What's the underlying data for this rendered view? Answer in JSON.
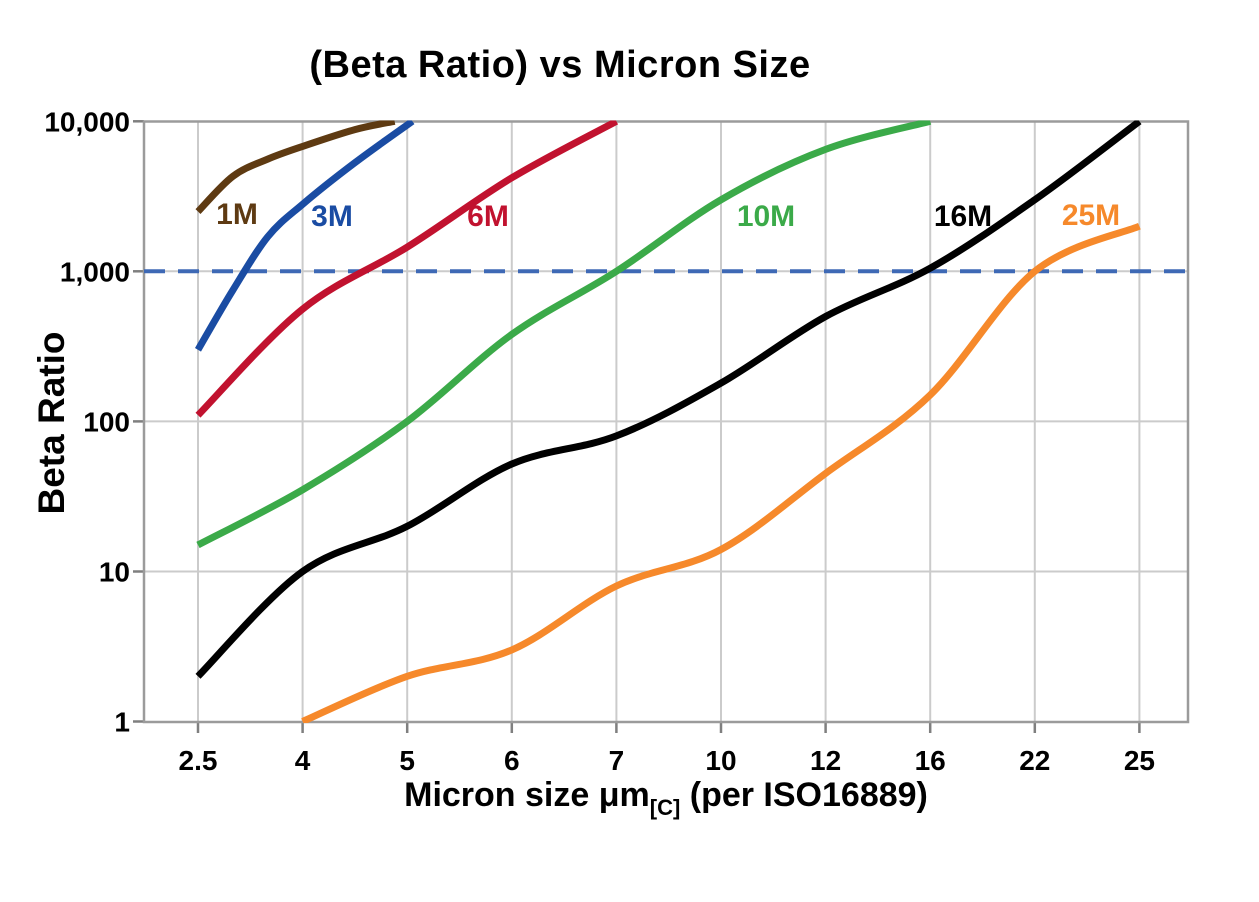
{
  "chart_data": {
    "type": "line",
    "title": "(Beta Ratio) vs Micron Size",
    "ylabel": "Beta Ratio",
    "xlabel_main": "Micron size μm",
    "xlabel_sub": "[C]",
    "xlabel_tail": " (per ISO16889)",
    "y_scale": "log",
    "ylim": [
      1,
      10000
    ],
    "grid": true,
    "legend_position": "inline-curve-labels",
    "y_ticks": [
      {
        "value": 10000,
        "label": "10,000"
      },
      {
        "value": 1000,
        "label": "1,000"
      },
      {
        "value": 100,
        "label": "100"
      },
      {
        "value": 10,
        "label": "10"
      },
      {
        "value": 1,
        "label": "1"
      }
    ],
    "x_categories": {
      "values": [
        2.5,
        4,
        5,
        6,
        7,
        10,
        12,
        16,
        22,
        25
      ],
      "labels": [
        "2.5",
        "4",
        "5",
        "6",
        "7",
        "10",
        "12",
        "16",
        "22",
        "25"
      ]
    },
    "reference_line": {
      "y": 1000,
      "style": "dashed",
      "color": "#3E69B5"
    },
    "series": [
      {
        "name": "1M",
        "color": "#5E3A12",
        "label_pos": [
          237,
          224
        ],
        "points": [
          [
            2.5,
            2500
          ],
          [
            3,
            4300
          ],
          [
            3.5,
            5600
          ],
          [
            4,
            6800
          ],
          [
            4.5,
            8800
          ],
          [
            4.88,
            10000
          ]
        ]
      },
      {
        "name": "3M",
        "color": "#1A4CA3",
        "label_pos": [
          332,
          226
        ],
        "points": [
          [
            2.5,
            300
          ],
          [
            3,
            750
          ],
          [
            3.5,
            1700
          ],
          [
            4,
            2800
          ],
          [
            4.5,
            5300
          ],
          [
            5.05,
            10000
          ]
        ]
      },
      {
        "name": "6M",
        "color": "#C1122F",
        "label_pos": [
          488,
          226
        ],
        "points": [
          [
            2.5,
            110
          ],
          [
            4,
            560
          ],
          [
            5,
            1450
          ],
          [
            6,
            4200
          ],
          [
            7,
            10000
          ]
        ]
      },
      {
        "name": "10M",
        "color": "#3BAA49",
        "label_pos": [
          766,
          226
        ],
        "points": [
          [
            2.5,
            15
          ],
          [
            4,
            35
          ],
          [
            5,
            100
          ],
          [
            6,
            380
          ],
          [
            7,
            1000
          ],
          [
            10,
            3000
          ],
          [
            12,
            6500
          ],
          [
            16,
            10000
          ]
        ]
      },
      {
        "name": "16M",
        "color": "#000000",
        "label_pos": [
          963,
          226
        ],
        "points": [
          [
            2.5,
            2
          ],
          [
            4,
            10
          ],
          [
            5,
            20
          ],
          [
            6,
            52
          ],
          [
            7,
            80
          ],
          [
            10,
            180
          ],
          [
            12,
            500
          ],
          [
            16,
            1050
          ],
          [
            22,
            3000
          ],
          [
            25,
            10000
          ]
        ]
      },
      {
        "name": "25M",
        "color": "#F6892B",
        "label_pos": [
          1091,
          225
        ],
        "points": [
          [
            4,
            1
          ],
          [
            5,
            2
          ],
          [
            6,
            3
          ],
          [
            7,
            8
          ],
          [
            10,
            14
          ],
          [
            12,
            45
          ],
          [
            16,
            150
          ],
          [
            22,
            1000
          ],
          [
            25,
            2000
          ]
        ]
      }
    ],
    "colors": {
      "grid": "#CBCBCB",
      "border": "#9B9B9B",
      "tick": "#7F7F7F",
      "text": "#000000"
    }
  }
}
